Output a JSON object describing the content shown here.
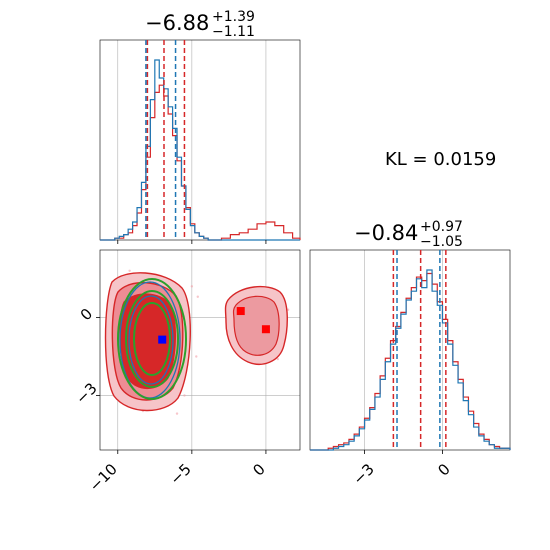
{
  "chart_data": [
    {
      "type": "step-histogram",
      "panel": "marginal-1",
      "title": {
        "median": "−6.88",
        "upper": "+1.39",
        "lower": "−1.11"
      },
      "xlim": [
        -11.2,
        2.3
      ],
      "x_ticks": [
        -10,
        -5,
        0
      ],
      "lines": {
        "red": [
          -8.0,
          -6.88,
          -5.5
        ],
        "blue": [
          -8.1,
          -6.1
        ]
      },
      "series": [
        {
          "name": "",
          "color": "#d62728",
          "bins": [
            [
              -11.2,
              0
            ],
            [
              -10.5,
              0
            ],
            [
              -10.2,
              1
            ],
            [
              -9.9,
              1
            ],
            [
              -9.6,
              3
            ],
            [
              -9.3,
              4
            ],
            [
              -9.0,
              8
            ],
            [
              -8.7,
              15
            ],
            [
              -8.4,
              28
            ],
            [
              -8.1,
              46
            ],
            [
              -7.8,
              68
            ],
            [
              -7.5,
              82
            ],
            [
              -7.2,
              86
            ],
            [
              -6.9,
              80
            ],
            [
              -6.6,
              70
            ],
            [
              -6.3,
              58
            ],
            [
              -6.0,
              44
            ],
            [
              -5.7,
              30
            ],
            [
              -5.4,
              18
            ],
            [
              -5.1,
              9
            ],
            [
              -4.8,
              4
            ],
            [
              -4.5,
              2
            ],
            [
              -4.2,
              1
            ],
            [
              -3.9,
              0
            ],
            [
              -3.0,
              1
            ],
            [
              -2.4,
              3
            ],
            [
              -1.8,
              4
            ],
            [
              -1.2,
              6
            ],
            [
              -0.6,
              9
            ],
            [
              0,
              10
            ],
            [
              0.6,
              8
            ],
            [
              1.2,
              4
            ],
            [
              1.8,
              1
            ],
            [
              2.3,
              0
            ]
          ]
        },
        {
          "name": "",
          "color": "#1f77b4",
          "bins": [
            [
              -11.2,
              0
            ],
            [
              -10.2,
              1
            ],
            [
              -9.9,
              2
            ],
            [
              -9.6,
              3
            ],
            [
              -9.3,
              6
            ],
            [
              -9.0,
              10
            ],
            [
              -8.7,
              18
            ],
            [
              -8.4,
              32
            ],
            [
              -8.1,
              52
            ],
            [
              -7.8,
              78
            ],
            [
              -7.5,
              100
            ],
            [
              -7.2,
              90
            ],
            [
              -6.9,
              84
            ],
            [
              -6.6,
              74
            ],
            [
              -6.3,
              62
            ],
            [
              -6.0,
              46
            ],
            [
              -5.7,
              30
            ],
            [
              -5.4,
              17
            ],
            [
              -5.1,
              8
            ],
            [
              -4.8,
              4
            ],
            [
              -4.5,
              2
            ],
            [
              -4.2,
              1
            ],
            [
              -3.9,
              0
            ],
            [
              2.3,
              0
            ]
          ]
        }
      ]
    },
    {
      "type": "contour",
      "panel": "joint",
      "xlim": [
        -11.2,
        2.3
      ],
      "ylim": [
        -5.1,
        2.6
      ],
      "x_ticks": [
        -10,
        -5,
        0
      ],
      "y_ticks": [
        0,
        -3
      ],
      "points": [
        {
          "name": "",
          "color": "#0000ff",
          "x": -7.0,
          "y": -0.85
        },
        {
          "name": "",
          "color": "#ff0000",
          "x": -1.7,
          "y": 0.25
        },
        {
          "name": "",
          "color": "#ff0000",
          "x": 0.0,
          "y": -0.45
        }
      ]
    },
    {
      "type": "step-histogram",
      "panel": "marginal-2",
      "title": {
        "median": "−0.84",
        "upper": "+0.97",
        "lower": "−1.05"
      },
      "xlim": [
        -5.1,
        2.6
      ],
      "x_ticks": [
        -3,
        0
      ],
      "lines": {
        "red": [
          -1.89,
          -0.84,
          0.13
        ],
        "blue": [
          -1.75,
          -0.1
        ]
      },
      "series": [
        {
          "name": "",
          "color": "#d62728",
          "bins": [
            [
              -5.1,
              0
            ],
            [
              -4.4,
              1
            ],
            [
              -4.2,
              2
            ],
            [
              -4.0,
              3
            ],
            [
              -3.8,
              4
            ],
            [
              -3.6,
              6
            ],
            [
              -3.4,
              9
            ],
            [
              -3.2,
              13
            ],
            [
              -3.0,
              18
            ],
            [
              -2.8,
              24
            ],
            [
              -2.6,
              32
            ],
            [
              -2.4,
              42
            ],
            [
              -2.2,
              52
            ],
            [
              -2.0,
              62
            ],
            [
              -1.8,
              70
            ],
            [
              -1.6,
              78
            ],
            [
              -1.4,
              86
            ],
            [
              -1.2,
              92
            ],
            [
              -1.0,
              98
            ],
            [
              -0.8,
              96
            ],
            [
              -0.6,
              100
            ],
            [
              -0.4,
              94
            ],
            [
              -0.2,
              84
            ],
            [
              0,
              74
            ],
            [
              0.2,
              62
            ],
            [
              0.4,
              50
            ],
            [
              0.6,
              40
            ],
            [
              0.8,
              30
            ],
            [
              1.0,
              22
            ],
            [
              1.2,
              15
            ],
            [
              1.4,
              9
            ],
            [
              1.6,
              6
            ],
            [
              1.8,
              3
            ],
            [
              2.0,
              2
            ],
            [
              2.2,
              1
            ],
            [
              2.6,
              0
            ]
          ]
        },
        {
          "name": "",
          "color": "#1f77b4",
          "bins": [
            [
              -5.1,
              0
            ],
            [
              -4.2,
              1
            ],
            [
              -4.0,
              2
            ],
            [
              -3.8,
              3
            ],
            [
              -3.6,
              5
            ],
            [
              -3.4,
              8
            ],
            [
              -3.2,
              12
            ],
            [
              -3.0,
              17
            ],
            [
              -2.8,
              23
            ],
            [
              -2.6,
              30
            ],
            [
              -2.4,
              40
            ],
            [
              -2.2,
              50
            ],
            [
              -2.0,
              60
            ],
            [
              -1.8,
              69
            ],
            [
              -1.6,
              77
            ],
            [
              -1.4,
              85
            ],
            [
              -1.2,
              90
            ],
            [
              -1.0,
              97
            ],
            [
              -0.8,
              92
            ],
            [
              -0.6,
              102
            ],
            [
              -0.4,
              90
            ],
            [
              -0.2,
              82
            ],
            [
              0,
              72
            ],
            [
              0.2,
              60
            ],
            [
              0.4,
              48
            ],
            [
              0.6,
              38
            ],
            [
              0.8,
              28
            ],
            [
              1.0,
              20
            ],
            [
              1.2,
              13
            ],
            [
              1.4,
              8
            ],
            [
              1.6,
              5
            ],
            [
              1.8,
              3
            ],
            [
              2.0,
              1
            ],
            [
              2.6,
              0
            ]
          ]
        }
      ]
    }
  ],
  "annotation": {
    "kl": "KL = 0.0159"
  },
  "tick_labels": {
    "m1_x": [
      "−10",
      "−5",
      "0"
    ],
    "j_y": [
      "0",
      "−3"
    ],
    "m2_x": [
      "−3",
      "0"
    ]
  },
  "colors": {
    "red": "#d62728",
    "blue": "#1f77b4",
    "green": "#2ca02c",
    "grid": "#b0b0b0"
  }
}
